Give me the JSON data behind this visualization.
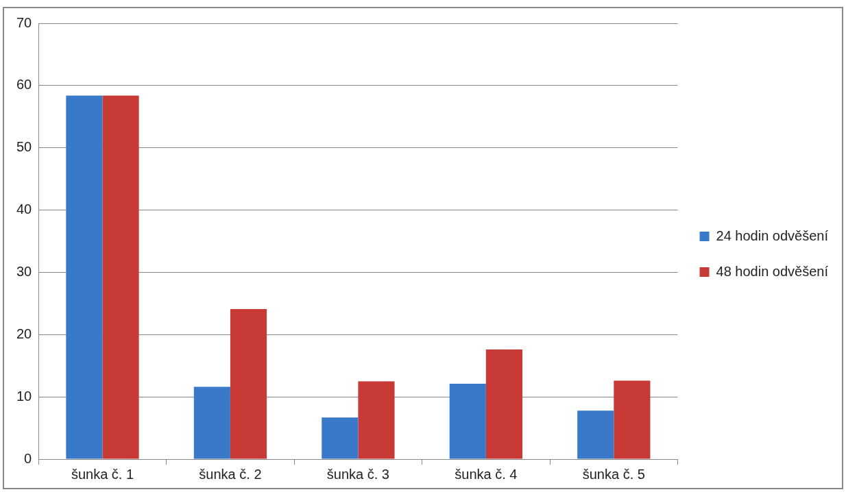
{
  "chart_data": {
    "type": "bar",
    "categories": [
      "šunka č. 1",
      "šunka č. 2",
      "šunka č. 3",
      "šunka č. 4",
      "šunka č. 5"
    ],
    "series": [
      {
        "name": "24 hodin odvěšení",
        "color": "#3a78c9",
        "values": [
          58.4,
          11.6,
          6.7,
          12.1,
          7.8
        ]
      },
      {
        "name": "48 hodin odvěšení",
        "color": "#c83a36",
        "values": [
          58.4,
          24.1,
          12.5,
          17.6,
          12.6
        ]
      }
    ],
    "ylim": [
      0,
      70
    ],
    "yticks": [
      0,
      10,
      20,
      30,
      40,
      50,
      60,
      70
    ],
    "grid": "y",
    "legend": "right"
  }
}
